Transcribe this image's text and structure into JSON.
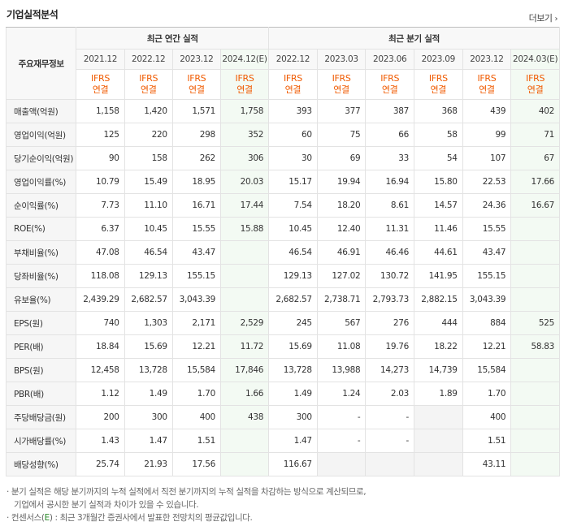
{
  "title": "기업실적분석",
  "more": "더보기",
  "header": {
    "stub": "주요재무정보",
    "annual_group": "최근 연간 실적",
    "quarter_group": "최근 분기 실적",
    "annual_periods": [
      "2021.12",
      "2022.12",
      "2023.12",
      "2024.12(E)"
    ],
    "quarter_periods": [
      "2022.12",
      "2023.03",
      "2023.06",
      "2023.09",
      "2023.12",
      "2024.03(E)"
    ],
    "ifrs_line1": "IFRS",
    "ifrs_line2": "연결"
  },
  "rows": [
    {
      "label": "매출액(억원)",
      "annual": [
        "1,158",
        "1,420",
        "1,571",
        "1,758"
      ],
      "quarter": [
        "393",
        "377",
        "387",
        "368",
        "439",
        "402"
      ]
    },
    {
      "label": "영업이익(억원)",
      "annual": [
        "125",
        "220",
        "298",
        "352"
      ],
      "quarter": [
        "60",
        "75",
        "66",
        "58",
        "99",
        "71"
      ]
    },
    {
      "label": "당기순이익(억원)",
      "annual": [
        "90",
        "158",
        "262",
        "306"
      ],
      "quarter": [
        "30",
        "69",
        "33",
        "54",
        "107",
        "67"
      ]
    },
    {
      "label": "영업이익률(%)",
      "annual": [
        "10.79",
        "15.49",
        "18.95",
        "20.03"
      ],
      "quarter": [
        "15.17",
        "19.94",
        "16.94",
        "15.80",
        "22.53",
        "17.66"
      ]
    },
    {
      "label": "순이익률(%)",
      "annual": [
        "7.73",
        "11.10",
        "16.71",
        "17.44"
      ],
      "quarter": [
        "7.54",
        "18.20",
        "8.61",
        "14.57",
        "24.36",
        "16.67"
      ]
    },
    {
      "label": "ROE(%)",
      "annual": [
        "6.37",
        "10.45",
        "15.55",
        "15.88"
      ],
      "quarter": [
        "10.45",
        "12.40",
        "11.31",
        "11.46",
        "15.55",
        ""
      ]
    },
    {
      "label": "부채비율(%)",
      "annual": [
        "47.08",
        "46.54",
        "43.47",
        ""
      ],
      "quarter": [
        "46.54",
        "46.91",
        "46.46",
        "44.61",
        "43.47",
        ""
      ]
    },
    {
      "label": "당좌비율(%)",
      "annual": [
        "118.08",
        "129.13",
        "155.15",
        ""
      ],
      "quarter": [
        "129.13",
        "127.02",
        "130.72",
        "141.95",
        "155.15",
        ""
      ]
    },
    {
      "label": "유보율(%)",
      "annual": [
        "2,439.29",
        "2,682.57",
        "3,043.39",
        ""
      ],
      "quarter": [
        "2,682.57",
        "2,738.71",
        "2,793.73",
        "2,882.15",
        "3,043.39",
        ""
      ]
    },
    {
      "label": "EPS(원)",
      "annual": [
        "740",
        "1,303",
        "2,171",
        "2,529"
      ],
      "quarter": [
        "245",
        "567",
        "276",
        "444",
        "884",
        "525"
      ]
    },
    {
      "label": "PER(배)",
      "annual": [
        "18.84",
        "15.69",
        "12.21",
        "11.72"
      ],
      "quarter": [
        "15.69",
        "11.08",
        "19.76",
        "18.22",
        "12.21",
        "58.83"
      ]
    },
    {
      "label": "BPS(원)",
      "annual": [
        "12,458",
        "13,728",
        "15,584",
        "17,846"
      ],
      "quarter": [
        "13,728",
        "13,988",
        "14,273",
        "14,739",
        "15,584",
        ""
      ]
    },
    {
      "label": "PBR(배)",
      "annual": [
        "1.12",
        "1.49",
        "1.70",
        "1.66"
      ],
      "quarter": [
        "1.49",
        "1.24",
        "2.03",
        "1.89",
        "1.70",
        ""
      ]
    },
    {
      "label": "주당배당금(원)",
      "annual": [
        "200",
        "300",
        "400",
        "438"
      ],
      "quarter": [
        "300",
        "-",
        "-",
        "",
        "400",
        ""
      ]
    },
    {
      "label": "시가배당률(%)",
      "annual": [
        "1.43",
        "1.47",
        "1.51",
        ""
      ],
      "quarter": [
        "1.47",
        "-",
        "-",
        "",
        "1.51",
        ""
      ]
    },
    {
      "label": "배당성향(%)",
      "annual": [
        "25.74",
        "21.93",
        "17.56",
        ""
      ],
      "quarter": [
        "116.67",
        "",
        "",
        "",
        "43.11",
        ""
      ]
    }
  ],
  "notes": {
    "line1": "· 분기 실적은 해당 분기까지의 누적 실적에서 직전 분기까지의 누적 실적을 차감하는 방식으로 계산되므로,",
    "line2": "기업에서 공시한 분기 실적과 차이가 있을 수 있습니다.",
    "line3_pre": "· 컨센서스(",
    "line3_e": "E",
    "line3_post": ") : 최근 3개월간 증권사에서 발표한 전망치의 평균값입니다."
  }
}
